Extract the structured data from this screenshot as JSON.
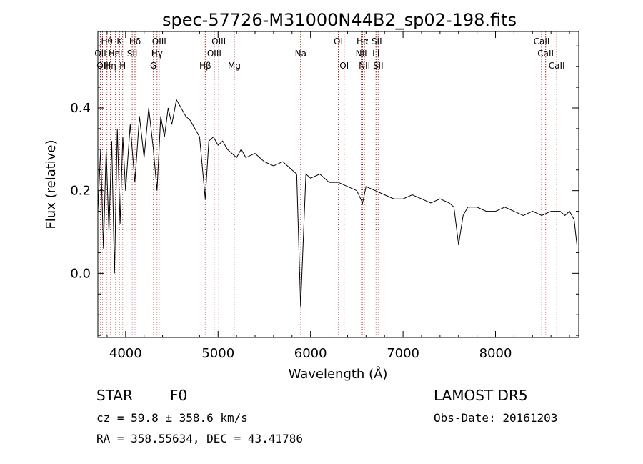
{
  "chart_data": {
    "type": "line",
    "title": "spec-57726-M31000N44B2_sp02-198.fits",
    "xlabel": "Wavelength (Å)",
    "ylabel": "Flux (relative)",
    "xlim": [
      3700,
      8900
    ],
    "ylim": [
      -0.155,
      0.585
    ],
    "x_ticks": [
      4000,
      5000,
      6000,
      7000,
      8000
    ],
    "y_ticks": [
      0.0,
      0.2,
      0.4
    ],
    "x_tick_labels": [
      "4000",
      "5000",
      "6000",
      "7000",
      "8000"
    ],
    "y_tick_labels": [
      "0.0",
      "0.2",
      "0.4"
    ],
    "grid": false,
    "line_color": "#000000",
    "marker_line_color": "#a52a2a",
    "series": [
      {
        "name": "",
        "x": [
          3700,
          3730,
          3760,
          3790,
          3820,
          3850,
          3880,
          3910,
          3940,
          3970,
          4000,
          4050,
          4100,
          4150,
          4200,
          4250,
          4300,
          4340,
          4380,
          4420,
          4460,
          4500,
          4550,
          4600,
          4650,
          4700,
          4750,
          4800,
          4861,
          4900,
          4950,
          5000,
          5050,
          5100,
          5150,
          5200,
          5250,
          5300,
          5400,
          5500,
          5600,
          5700,
          5800,
          5850,
          5893,
          5950,
          6000,
          6100,
          6200,
          6300,
          6400,
          6500,
          6563,
          6600,
          6700,
          6800,
          6900,
          7000,
          7100,
          7200,
          7300,
          7400,
          7500,
          7550,
          7600,
          7650,
          7700,
          7800,
          7900,
          8000,
          8100,
          8200,
          8300,
          8400,
          8500,
          8600,
          8700,
          8750,
          8800,
          8850,
          8880
        ],
        "y": [
          0.15,
          0.3,
          0.06,
          0.3,
          0.1,
          0.32,
          0.0,
          0.35,
          0.12,
          0.33,
          0.2,
          0.36,
          0.22,
          0.38,
          0.28,
          0.4,
          0.3,
          0.2,
          0.38,
          0.33,
          0.4,
          0.36,
          0.42,
          0.4,
          0.38,
          0.37,
          0.35,
          0.33,
          0.18,
          0.32,
          0.33,
          0.31,
          0.32,
          0.3,
          0.29,
          0.28,
          0.3,
          0.28,
          0.29,
          0.27,
          0.26,
          0.27,
          0.25,
          0.24,
          -0.08,
          0.24,
          0.23,
          0.24,
          0.22,
          0.22,
          0.21,
          0.2,
          0.17,
          0.21,
          0.2,
          0.19,
          0.18,
          0.18,
          0.19,
          0.18,
          0.17,
          0.18,
          0.17,
          0.16,
          0.07,
          0.14,
          0.16,
          0.16,
          0.15,
          0.15,
          0.16,
          0.15,
          0.14,
          0.15,
          0.14,
          0.15,
          0.15,
          0.14,
          0.15,
          0.13,
          0.07
        ]
      }
    ],
    "line_markers": [
      {
        "x": 3727,
        "label": "OII",
        "row": 2
      },
      {
        "x": 3750,
        "label": "OII",
        "row": 3
      },
      {
        "x": 3798,
        "label": "Hθ",
        "row": 1
      },
      {
        "x": 3835,
        "label": "Hη",
        "row": 3
      },
      {
        "x": 3889,
        "label": "HeI",
        "row": 2
      },
      {
        "x": 3934,
        "label": "K",
        "row": 1
      },
      {
        "x": 3968,
        "label": "H",
        "row": 3
      },
      {
        "x": 4072,
        "label": "SII",
        "row": 2
      },
      {
        "x": 4102,
        "label": "Hδ",
        "row": 1
      },
      {
        "x": 4300,
        "label": "G",
        "row": 3
      },
      {
        "x": 4340,
        "label": "Hγ",
        "row": 2
      },
      {
        "x": 4363,
        "label": "OIII",
        "row": 1
      },
      {
        "x": 4861,
        "label": "Hβ",
        "row": 3
      },
      {
        "x": 4959,
        "label": "OIII",
        "row": 2
      },
      {
        "x": 5007,
        "label": "OIII",
        "row": 1
      },
      {
        "x": 5175,
        "label": "Mg",
        "row": 3
      },
      {
        "x": 5893,
        "label": "Na",
        "row": 2
      },
      {
        "x": 6300,
        "label": "OI",
        "row": 1
      },
      {
        "x": 6363,
        "label": "OI",
        "row": 3
      },
      {
        "x": 6548,
        "label": "NII",
        "row": 2
      },
      {
        "x": 6563,
        "label": "Hα",
        "row": 1
      },
      {
        "x": 6583,
        "label": "NII",
        "row": 3
      },
      {
        "x": 6707,
        "label": "Li",
        "row": 2
      },
      {
        "x": 6716,
        "label": "SII",
        "row": 1
      },
      {
        "x": 6731,
        "label": "SII",
        "row": 3
      },
      {
        "x": 8498,
        "label": "CaII",
        "row": 1
      },
      {
        "x": 8542,
        "label": "CaII",
        "row": 2
      },
      {
        "x": 8662,
        "label": "CaII",
        "row": 3
      }
    ]
  },
  "info": {
    "object_class": "STAR",
    "subclass": "F0",
    "survey": "LAMOST DR5",
    "cz": "cz = 59.8 ± 358.6 km/s",
    "obs_date": "Obs-Date: 20161203",
    "coords": "RA = 358.55634, DEC =  43.41786"
  }
}
